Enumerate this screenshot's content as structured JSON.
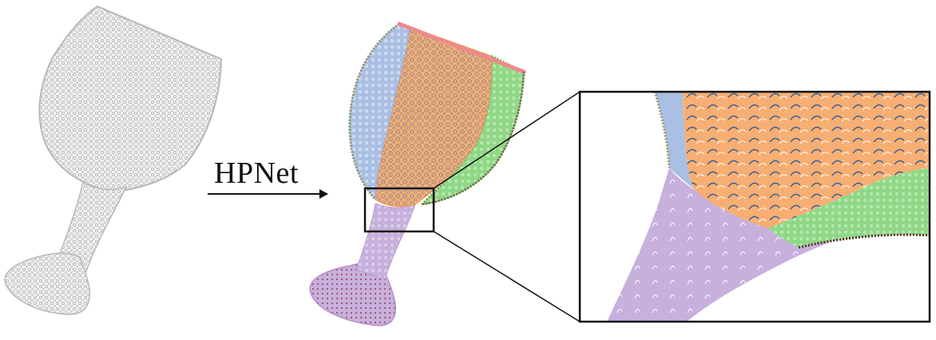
{
  "arrow_label": "HPNet",
  "colors": {
    "input_points": "#bdbdbd",
    "segment_blue": "#a9bfe3",
    "segment_orange": "#f7ae72",
    "segment_green": "#8fd886",
    "segment_purple": "#c7b0dc",
    "segment_pink": "#f08a8a",
    "accent_dark_blue": "#2f5f9c",
    "accent_dark_red": "#8c2a2a",
    "frame": "#111111"
  }
}
